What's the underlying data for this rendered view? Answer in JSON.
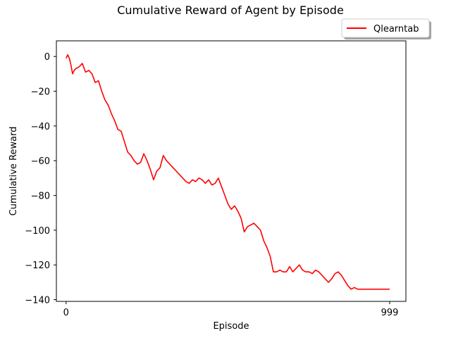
{
  "chart_data": {
    "type": "line",
    "title": "Cumulative Reward of Agent by Episode",
    "xlabel": "Episode",
    "ylabel": "Cumulative Reward",
    "xlim": [
      -30,
      1049
    ],
    "ylim": [
      -141,
      9
    ],
    "xticks": [
      0,
      999
    ],
    "yticks": [
      0,
      -20,
      -40,
      -60,
      -80,
      -100,
      -120,
      -140
    ],
    "grid": false,
    "legend_position": "top-right-outside",
    "series": [
      {
        "name": "Qlearntab",
        "color": "#ff0000",
        "x": [
          0,
          5,
          10,
          15,
          20,
          25,
          30,
          40,
          50,
          60,
          70,
          80,
          90,
          100,
          110,
          120,
          130,
          140,
          150,
          160,
          170,
          180,
          190,
          200,
          210,
          220,
          230,
          240,
          250,
          260,
          270,
          280,
          290,
          300,
          310,
          320,
          330,
          340,
          350,
          360,
          370,
          380,
          390,
          400,
          410,
          420,
          430,
          440,
          450,
          460,
          470,
          480,
          490,
          500,
          510,
          520,
          530,
          540,
          550,
          560,
          570,
          580,
          590,
          600,
          610,
          620,
          630,
          640,
          650,
          660,
          670,
          680,
          690,
          700,
          710,
          720,
          730,
          740,
          750,
          760,
          770,
          780,
          790,
          800,
          810,
          820,
          830,
          840,
          850,
          860,
          870,
          880,
          890,
          900,
          910,
          920,
          930,
          940,
          950,
          960,
          970,
          980,
          990,
          999
        ],
        "values": [
          -1,
          1,
          -1,
          -5,
          -10,
          -8,
          -7,
          -6,
          -4,
          -9,
          -8,
          -10,
          -15,
          -14,
          -20,
          -25,
          -28,
          -33,
          -37,
          -42,
          -43,
          -49,
          -55,
          -57,
          -60,
          -62,
          -61,
          -56,
          -60,
          -65,
          -71,
          -66,
          -64,
          -57,
          -60,
          -62,
          -64,
          -66,
          -68,
          -70,
          -72,
          -73,
          -71,
          -72,
          -70,
          -71,
          -73,
          -71,
          -74,
          -73,
          -70,
          -75,
          -80,
          -85,
          -88,
          -86,
          -89,
          -93,
          -101,
          -98,
          -97,
          -96,
          -98,
          -100,
          -106,
          -110,
          -115,
          -124,
          -124,
          -123,
          -124,
          -124,
          -121,
          -124,
          -122,
          -120,
          -123,
          -124,
          -124,
          -125,
          -123,
          -124,
          -126,
          -128,
          -130,
          -128,
          -125,
          -124,
          -126,
          -129,
          -132,
          -134,
          -133,
          -134,
          -134,
          -134,
          -134,
          -134,
          -134,
          -134,
          -134,
          -134,
          -134,
          -134
        ]
      }
    ]
  }
}
